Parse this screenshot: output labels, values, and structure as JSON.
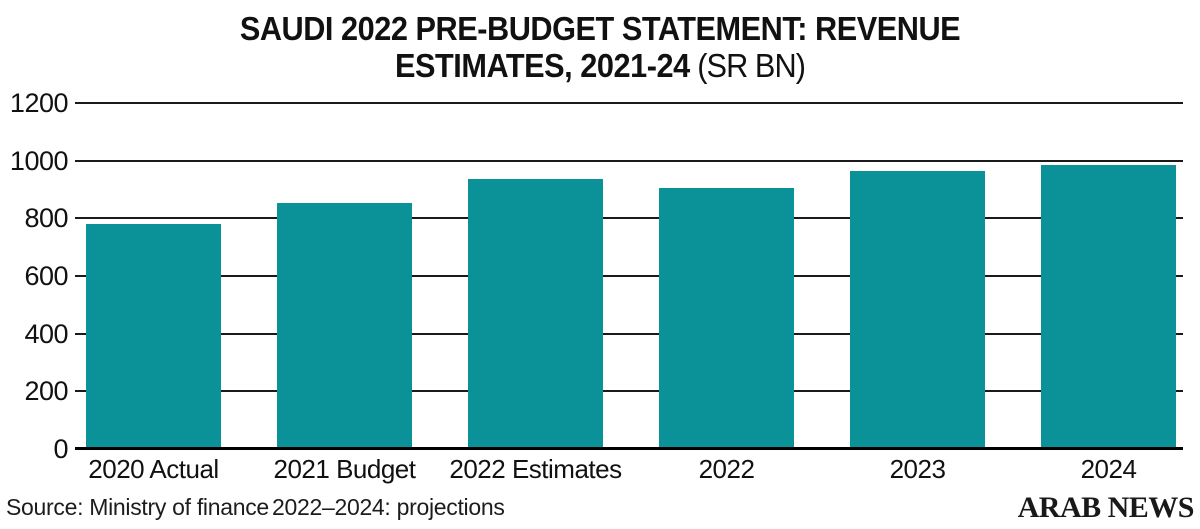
{
  "chart_data": {
    "type": "bar",
    "title_line1": "SAUDI 2022 PRE-BUDGET STATEMENT: REVENUE",
    "title_line2_bold": "ESTIMATES, 2021-24",
    "title_line2_suffix": " (SR BN)",
    "categories": [
      "2020 Actual",
      "2021 Budget",
      "2022 Estimates",
      "2022",
      "2023",
      "2024"
    ],
    "values": [
      780,
      855,
      935,
      905,
      965,
      985
    ],
    "ylim": [
      0,
      1200
    ],
    "yticks": [
      0,
      200,
      400,
      600,
      800,
      1000,
      1200
    ],
    "grid": "horizontal-black-lines-behind-bars",
    "legend": "none",
    "bar_color": "#0a9298",
    "axis_color": "#1a1a1a",
    "xlabel": "",
    "ylabel": "",
    "source": "Source: Ministry of finance",
    "note": "2022–2024: projections",
    "credit": "ARAB NEWS"
  }
}
